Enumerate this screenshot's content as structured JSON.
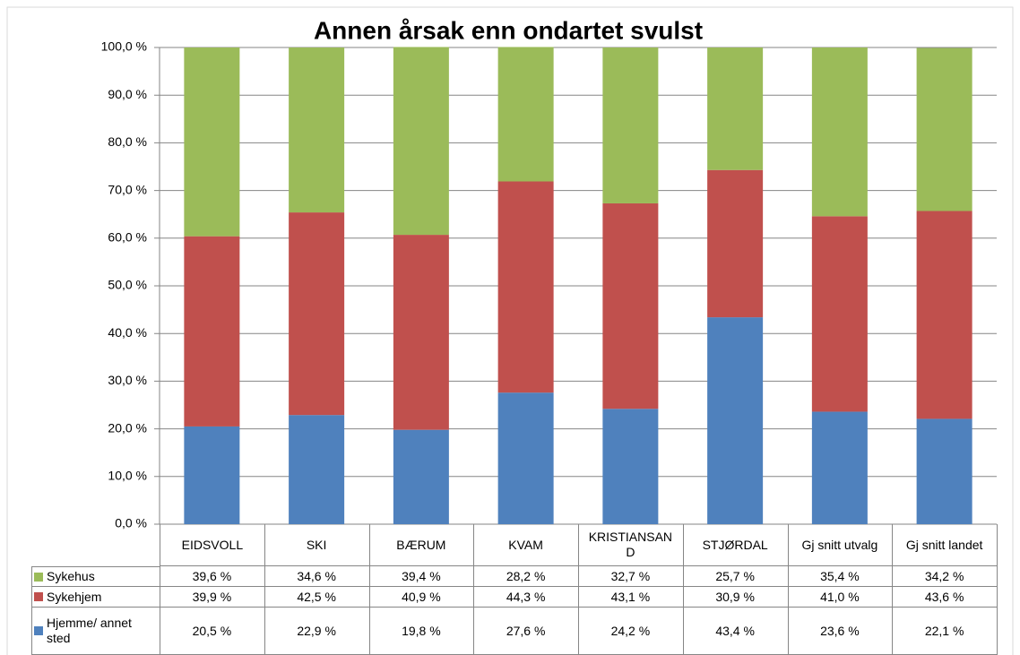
{
  "chart_data": {
    "type": "stacked_bar",
    "title": "Annen årsak enn ondartet svulst",
    "categories": [
      "EIDSVOLL",
      "SKI",
      "BÆRUM",
      "KVAM",
      "KRISTIANSAND",
      "STJØRDAL",
      "Gj snitt utvalg",
      "Gj snitt landet"
    ],
    "series": [
      {
        "name": "Hjemme/ annet sted",
        "color": "#4f81bd",
        "values": [
          20.5,
          22.9,
          19.8,
          27.6,
          24.2,
          43.4,
          23.6,
          22.1
        ],
        "value_labels": [
          "20,5 %",
          "22,9 %",
          "19,8 %",
          "27,6 %",
          "24,2 %",
          "43,4 %",
          "23,6 %",
          "22,1 %"
        ]
      },
      {
        "name": "Sykehjem",
        "color": "#c0504d",
        "values": [
          39.9,
          42.5,
          40.9,
          44.3,
          43.1,
          30.9,
          41.0,
          43.6
        ],
        "value_labels": [
          "39,9 %",
          "42,5 %",
          "40,9 %",
          "44,3 %",
          "43,1 %",
          "30,9 %",
          "41,0 %",
          "43,6 %"
        ]
      },
      {
        "name": "Sykehus",
        "color": "#9bbb59",
        "values": [
          39.6,
          34.6,
          39.4,
          28.2,
          32.7,
          25.7,
          35.4,
          34.2
        ],
        "value_labels": [
          "39,6 %",
          "34,6 %",
          "39,4 %",
          "28,2 %",
          "32,7 %",
          "25,7 %",
          "35,4 %",
          "34,2 %"
        ]
      }
    ],
    "ylim": [
      0,
      100
    ],
    "yticks": [
      {
        "value": 0,
        "label": "0,0 %"
      },
      {
        "value": 10,
        "label": "10,0 %"
      },
      {
        "value": 20,
        "label": "20,0 %"
      },
      {
        "value": 30,
        "label": "30,0 %"
      },
      {
        "value": 40,
        "label": "40,0 %"
      },
      {
        "value": 50,
        "label": "50,0 %"
      },
      {
        "value": 60,
        "label": "60,0 %"
      },
      {
        "value": 70,
        "label": "70,0 %"
      },
      {
        "value": 80,
        "label": "80,0 %"
      },
      {
        "value": 90,
        "label": "90,0 %"
      },
      {
        "value": 100,
        "label": "100,0 %"
      }
    ],
    "grid": true
  }
}
